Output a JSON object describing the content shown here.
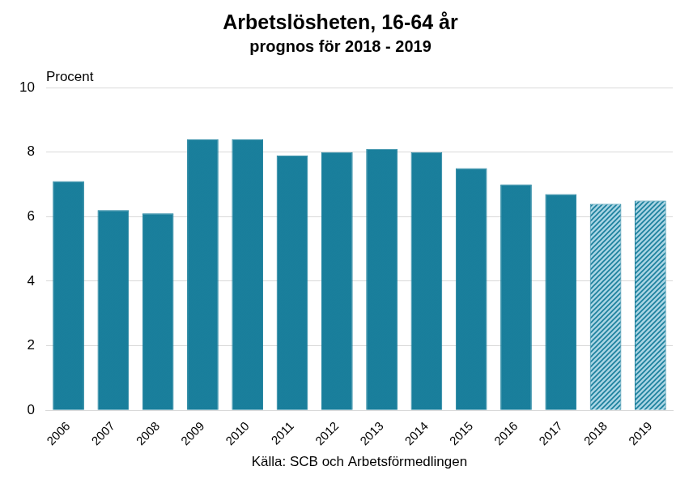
{
  "chart_data": {
    "type": "bar",
    "title": "Arbetslösheten, 16-64 år",
    "subtitle": "prognos för 2018 - 2019",
    "y_label": "Procent",
    "x_label": "Källa: SCB och Arbetsförmedlingen",
    "categories": [
      "2006",
      "2007",
      "2008",
      "2009",
      "2010",
      "2011",
      "2012",
      "2013",
      "2014",
      "2015",
      "2016",
      "2017",
      "2018",
      "2019"
    ],
    "values": [
      7.1,
      6.2,
      6.1,
      8.4,
      8.4,
      7.9,
      8.0,
      8.1,
      8.0,
      7.5,
      7.0,
      6.7,
      6.4,
      6.5
    ],
    "colors": [
      "#1a7f9c",
      "#1a7f9c",
      "#1a7f9c",
      "#1a7f9c",
      "#1a7f9c",
      "#1a7f9c",
      "#1a7f9c",
      "#1a7f9c",
      "#1a7f9c",
      "#1a7f9c",
      "#1a7f9c",
      "#1a7f9c",
      "#a8d4e3",
      "#a8d4e3"
    ],
    "ylim": [
      0,
      10
    ],
    "yticks": [
      0,
      2,
      4,
      6,
      8,
      10
    ],
    "grid": true
  }
}
